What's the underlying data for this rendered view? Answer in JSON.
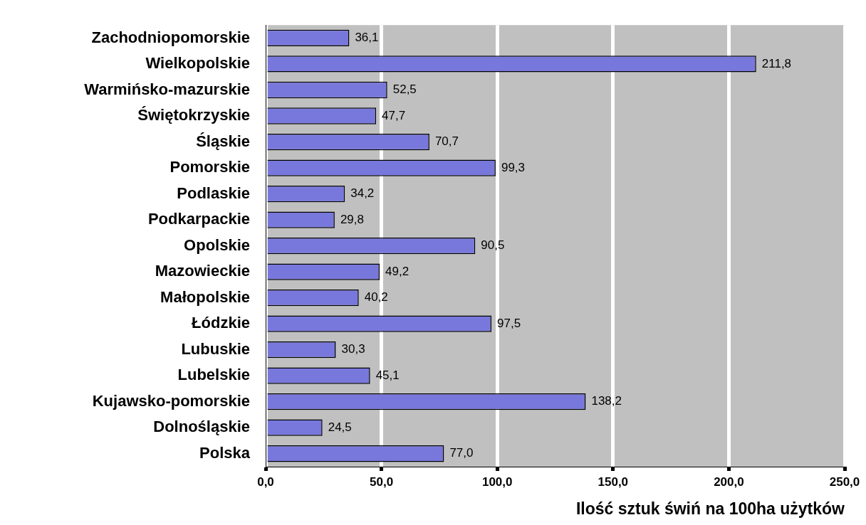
{
  "chart_data": {
    "type": "bar",
    "orientation": "horizontal",
    "xlabel": "Ilość sztuk świń na 100ha użytków",
    "categories": [
      "Zachodniopomorskie",
      "Wielkopolskie",
      "Warmińsko-mazurskie",
      "Świętokrzyskie",
      "Śląskie",
      "Pomorskie",
      "Podlaskie",
      "Podkarpackie",
      "Opolskie",
      "Mazowieckie",
      "Małopolskie",
      "Łódzkie",
      "Lubuskie",
      "Lubelskie",
      "Kujawsko-pomorskie",
      "Dolnośląskie",
      "Polska"
    ],
    "values": [
      36.1,
      211.8,
      52.5,
      47.7,
      70.7,
      99.3,
      34.2,
      29.8,
      90.5,
      49.2,
      40.2,
      97.5,
      30.3,
      45.1,
      138.2,
      24.5,
      77.0
    ],
    "value_labels": [
      "36,1",
      "211,8",
      "52,5",
      "47,7",
      "70,7",
      "99,3",
      "34,2",
      "29,8",
      "90,5",
      "49,2",
      "40,2",
      "97,5",
      "30,3",
      "45,1",
      "138,2",
      "24,5",
      "77,0"
    ],
    "color": "#7878dc",
    "xlim": [
      0,
      250
    ],
    "xticks": [
      {
        "value": 0,
        "label": "0,0"
      },
      {
        "value": 50,
        "label": "50,0"
      },
      {
        "value": 100,
        "label": "100,0"
      },
      {
        "value": 150,
        "label": "150,0"
      },
      {
        "value": 200,
        "label": "200,0"
      },
      {
        "value": 250,
        "label": "250,0"
      }
    ],
    "grid": "x",
    "legend": false
  }
}
